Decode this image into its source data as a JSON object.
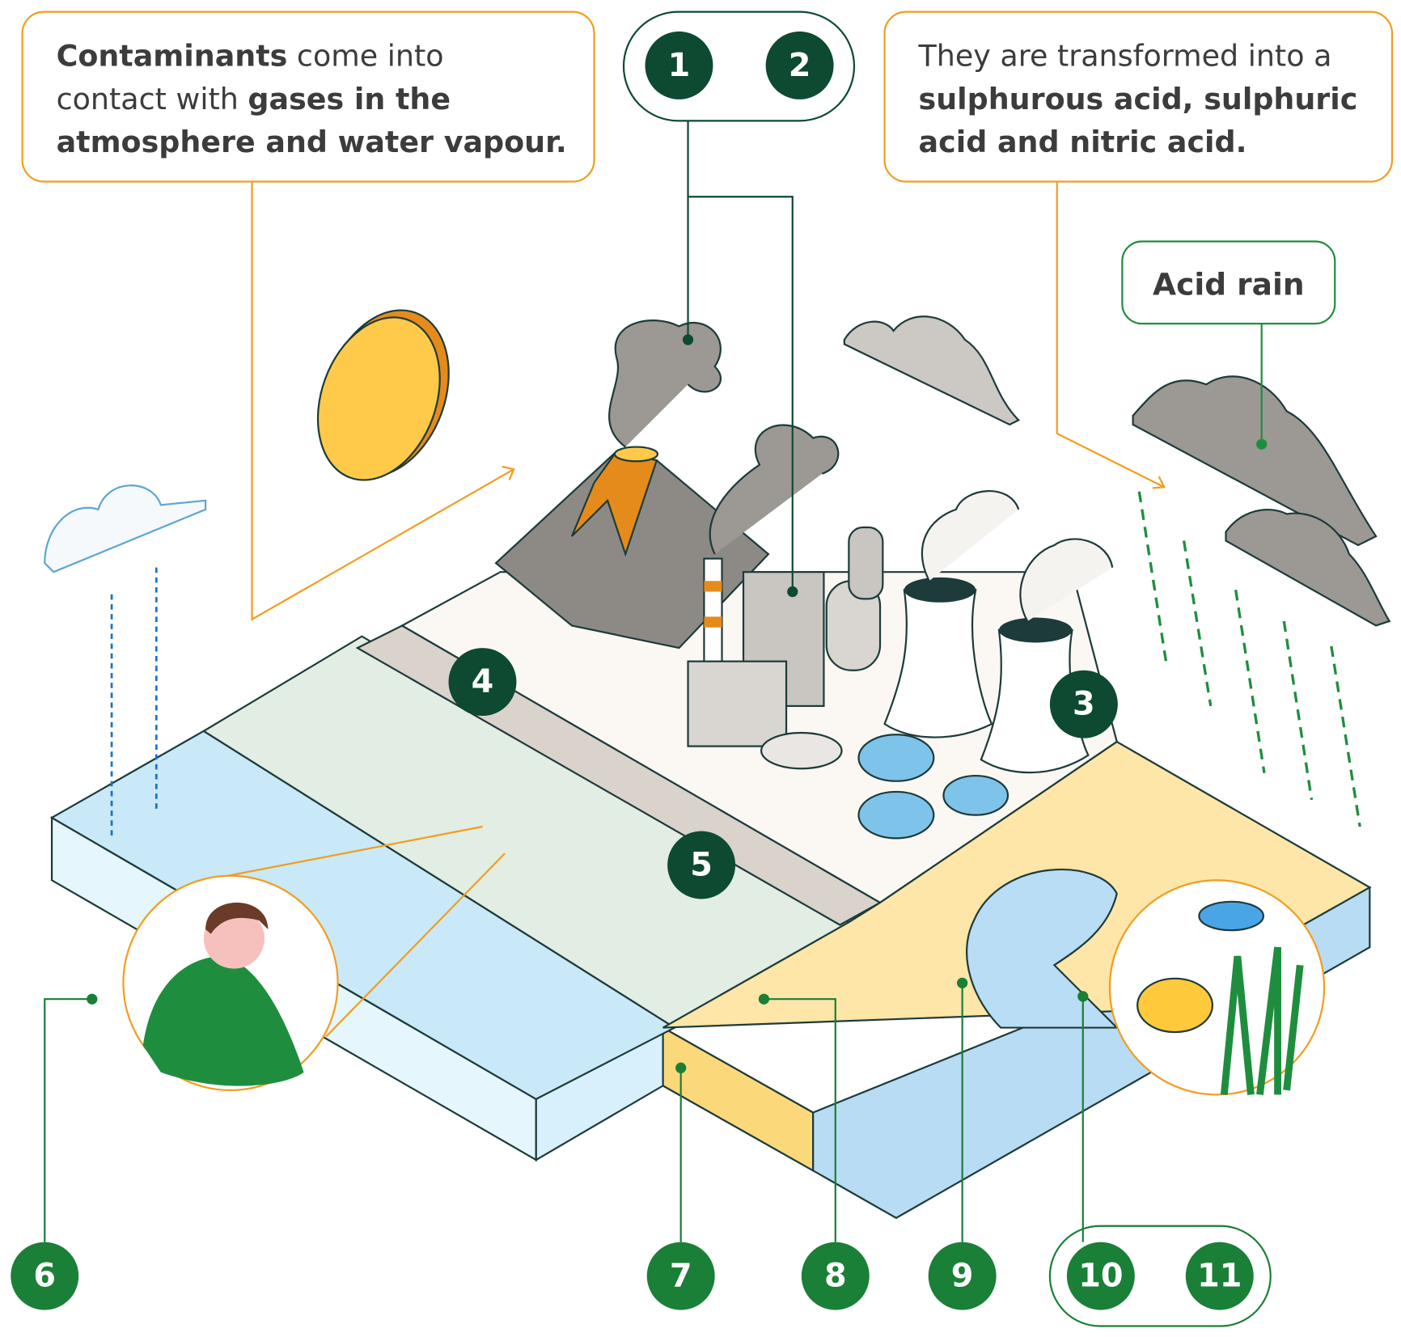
{
  "callouts": [
    {
      "lines": [
        [
          {
            "text": "Contaminants",
            "bold": true
          },
          {
            "text": " come into",
            "bold": false
          }
        ],
        [
          {
            "text": "contact with ",
            "bold": false
          },
          {
            "text": "gases in the",
            "bold": true
          }
        ],
        [
          {
            "text": "atmosphere and water vapour.",
            "bold": true
          }
        ]
      ]
    },
    {
      "lines": [
        [
          {
            "text": "They are transformed into a",
            "bold": false
          }
        ],
        [
          {
            "text": "sulphurous acid, sulphuric",
            "bold": true
          }
        ],
        [
          {
            "text": "acid and nitric acid.",
            "bold": true
          }
        ]
      ]
    }
  ],
  "label": "Acid rain",
  "markers": [
    "1",
    "2",
    "3",
    "4",
    "5",
    "6",
    "7",
    "8",
    "9",
    "10",
    "11"
  ]
}
